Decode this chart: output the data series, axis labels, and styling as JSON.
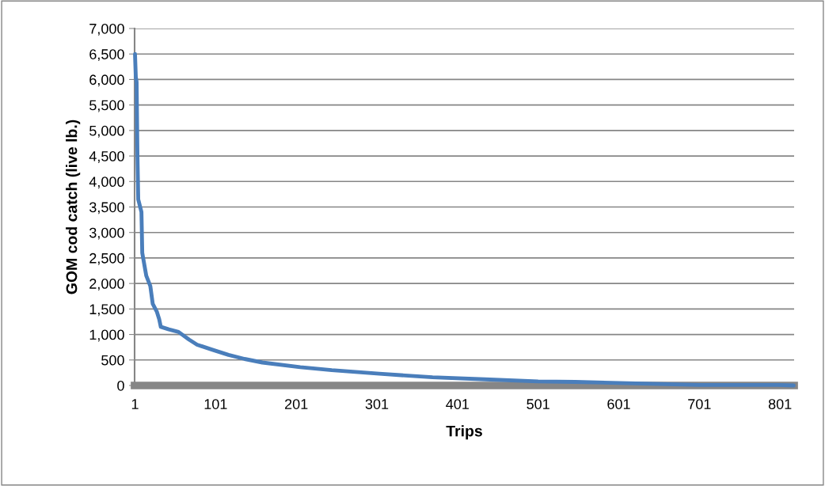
{
  "chart_data": {
    "type": "line",
    "xlabel": "Trips",
    "ylabel": "GOM cod catch (live lb.)",
    "x": [
      1,
      2,
      3,
      4,
      5,
      9,
      10,
      15,
      20,
      23,
      28,
      31,
      33,
      43,
      55,
      68,
      78,
      97,
      117,
      137,
      159,
      206,
      245,
      304,
      370,
      435,
      501,
      547,
      652,
      700,
      799,
      818
    ],
    "series": [
      {
        "color": "#4a7ebb",
        "values": [
          6500,
          6050,
          5950,
          4550,
          3650,
          3400,
          2600,
          2150,
          1950,
          1600,
          1450,
          1300,
          1150,
          1100,
          1050,
          900,
          800,
          700,
          600,
          520,
          450,
          360,
          300,
          230,
          160,
          120,
          80,
          70,
          30,
          10,
          10,
          0
        ]
      }
    ],
    "xlim": [
      0.5,
      818.5
    ],
    "xticks": [
      1,
      101,
      201,
      301,
      401,
      501,
      601,
      701,
      801
    ],
    "ylim": [
      0,
      7000
    ],
    "yticks": [
      {
        "value": 0,
        "label": "0"
      },
      {
        "value": 500,
        "label": "500"
      },
      {
        "value": 1000,
        "label": "1,000"
      },
      {
        "value": 1500,
        "label": "1,500"
      },
      {
        "value": 2000,
        "label": "2,000"
      },
      {
        "value": 2500,
        "label": "2,500"
      },
      {
        "value": 3000,
        "label": "3,000"
      },
      {
        "value": 3500,
        "label": "3,500"
      },
      {
        "value": 4000,
        "label": "4,000"
      },
      {
        "value": 4500,
        "label": "4,500"
      },
      {
        "value": 5000,
        "label": "5,000"
      },
      {
        "value": 5500,
        "label": "5,500"
      },
      {
        "value": 6000,
        "label": "6,000"
      },
      {
        "value": 6500,
        "label": "6,500"
      },
      {
        "value": 7000,
        "label": "7,000"
      }
    ],
    "grid": "y",
    "marker": "none",
    "line_style": "solid"
  }
}
